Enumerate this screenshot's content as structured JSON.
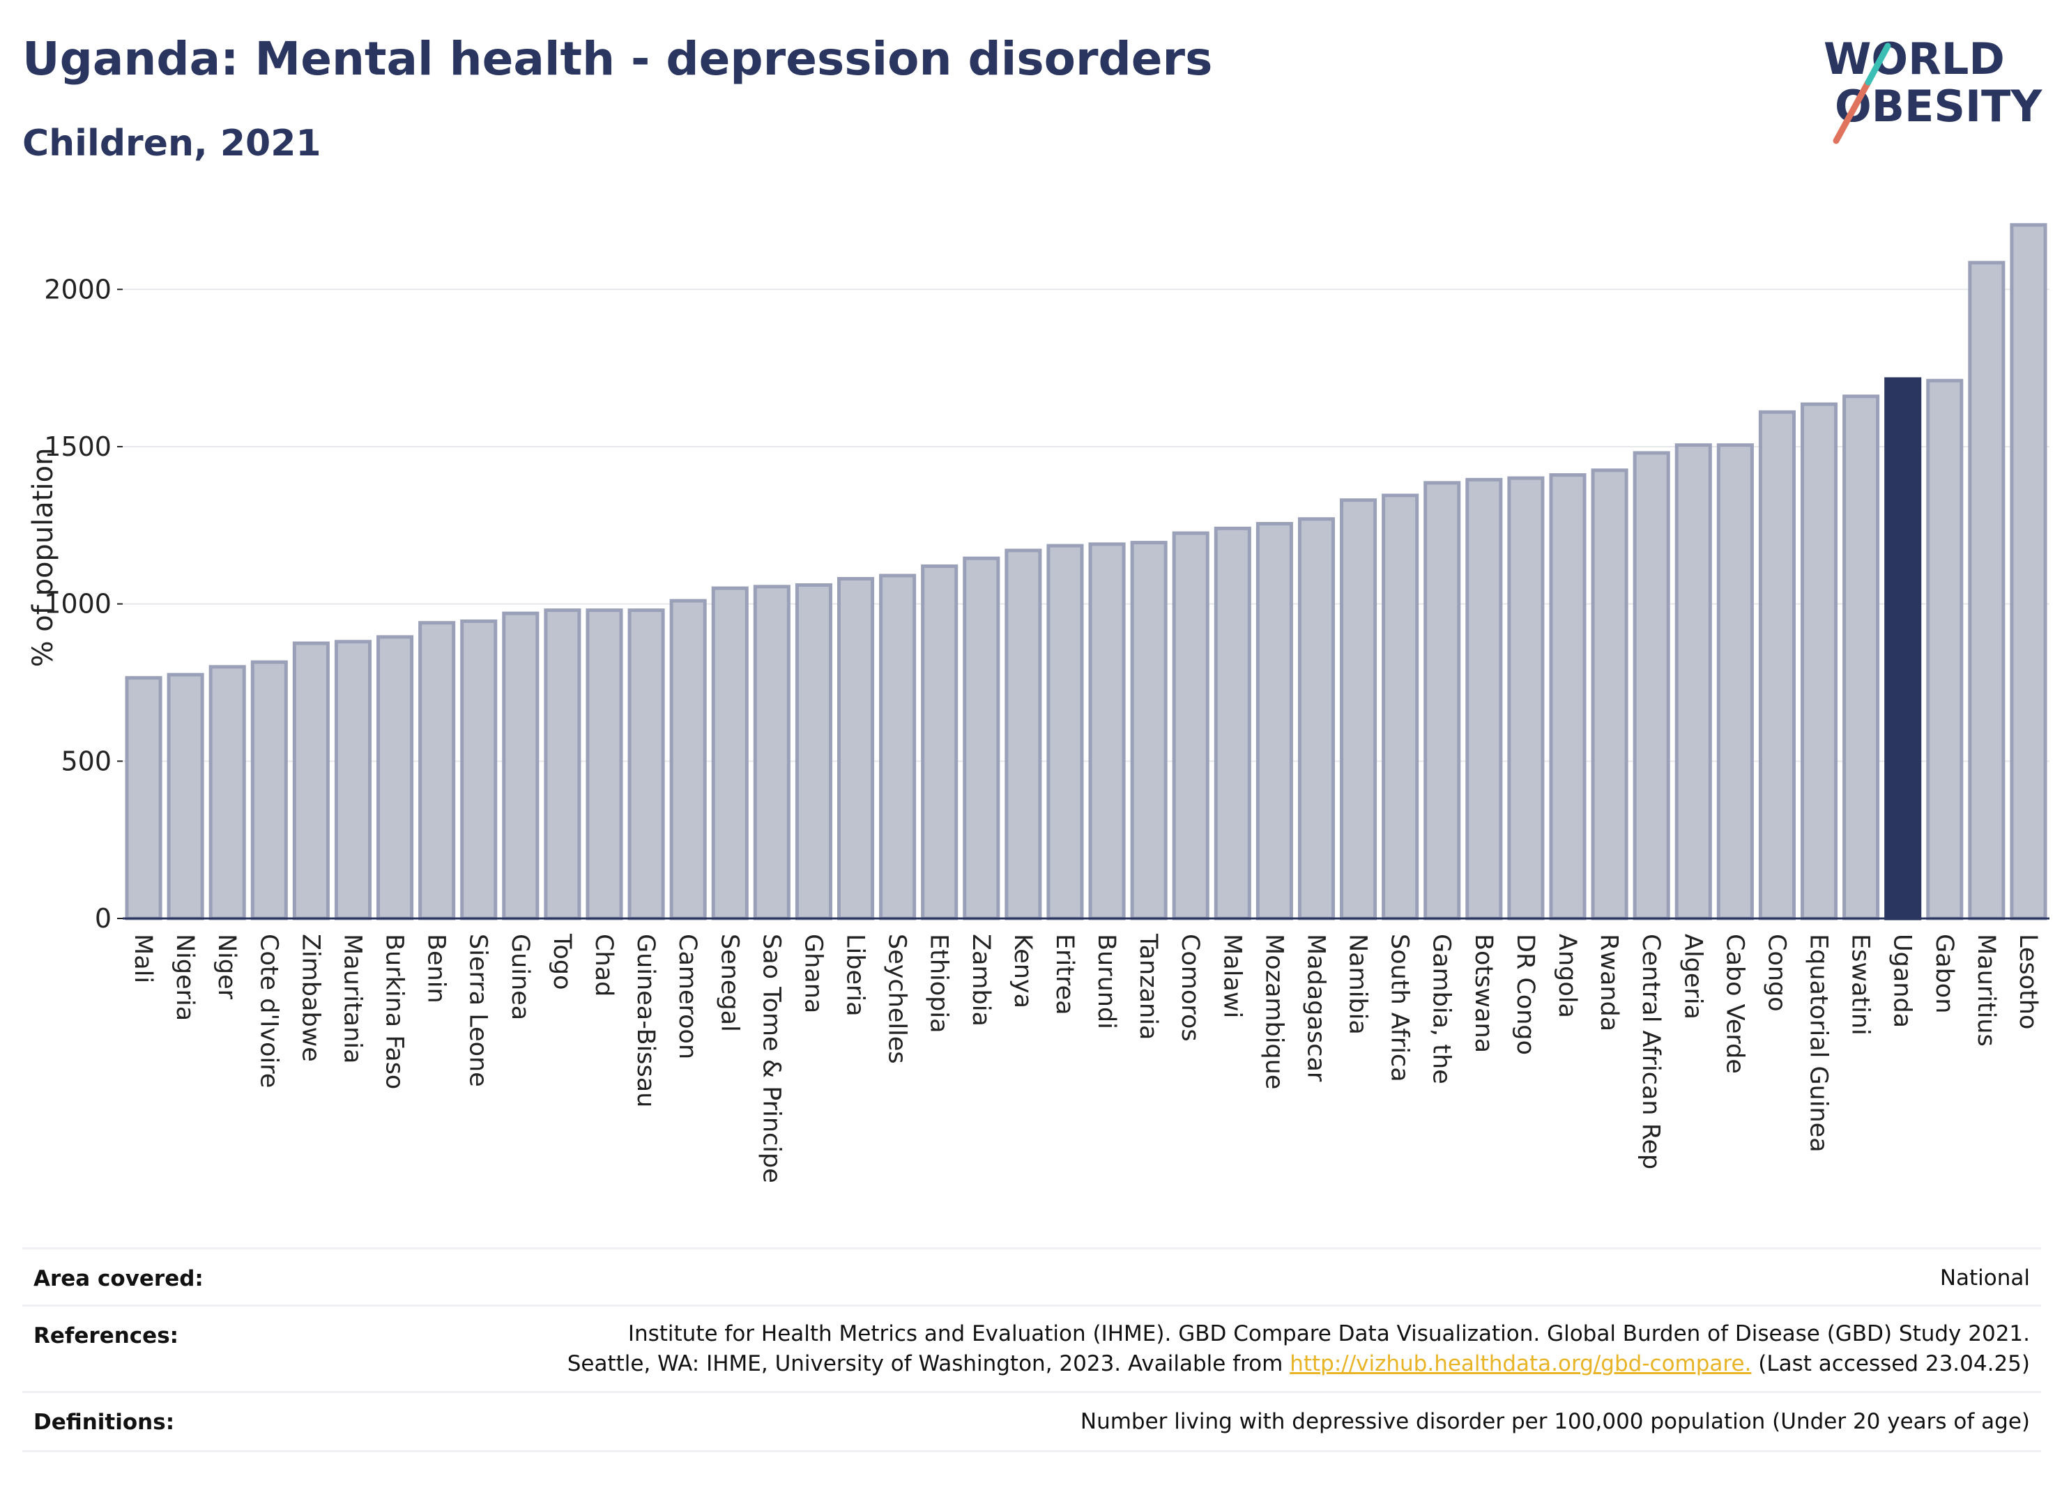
{
  "header": {
    "title": "Uganda: Mental health - depression disorders",
    "subtitle": "Children, 2021"
  },
  "logo": {
    "text_top": "WORLD",
    "text_bottom": "OBESITY"
  },
  "chart_data": {
    "type": "bar",
    "ylabel": "% of population",
    "ylim": [
      0,
      2200
    ],
    "yticks": [
      0,
      500,
      1000,
      1500,
      2000
    ],
    "grid": true,
    "highlight": "Uganda",
    "colors": {
      "bar": "#bfc3d0",
      "bar_edge": "#9aa0b8",
      "highlight": "#2a3560"
    },
    "categories": [
      "Mali",
      "Nigeria",
      "Niger",
      "Cote d'Ivoire",
      "Zimbabwe",
      "Mauritania",
      "Burkina Faso",
      "Benin",
      "Sierra Leone",
      "Guinea",
      "Togo",
      "Chad",
      "Guinea-Bissau",
      "Cameroon",
      "Senegal",
      "Sao Tome & Principe",
      "Ghana",
      "Liberia",
      "Seychelles",
      "Ethiopia",
      "Zambia",
      "Kenya",
      "Eritrea",
      "Burundi",
      "Tanzania",
      "Comoros",
      "Malawi",
      "Mozambique",
      "Madagascar",
      "Namibia",
      "South Africa",
      "Gambia, the",
      "Botswana",
      "DR Congo",
      "Angola",
      "Rwanda",
      "Central African Rep",
      "Algeria",
      "Cabo Verde",
      "Congo",
      "Equatorial Guinea",
      "Eswatini",
      "Uganda",
      "Gabon",
      "Mauritius",
      "Lesotho"
    ],
    "values": [
      765,
      775,
      800,
      815,
      875,
      880,
      895,
      940,
      945,
      970,
      980,
      980,
      980,
      1010,
      1050,
      1055,
      1060,
      1080,
      1090,
      1120,
      1145,
      1170,
      1185,
      1190,
      1195,
      1225,
      1240,
      1255,
      1270,
      1330,
      1345,
      1385,
      1395,
      1400,
      1410,
      1425,
      1480,
      1505,
      1505,
      1610,
      1635,
      1660,
      1715,
      1710,
      2085,
      2205
    ]
  },
  "info": {
    "area_label": "Area covered:",
    "area_value": "National",
    "references_label": "References:",
    "references_line1": "Institute for Health Metrics and Evaluation (IHME). GBD Compare Data Visualization. Global Burden of Disease (GBD) Study 2021.",
    "references_line2_pre": "Seattle, WA: IHME, University of Washington, 2023. Available from ",
    "references_link": "http://vizhub.healthdata.org/gbd-compare.",
    "references_line2_post": " (Last accessed 23.04.25)",
    "definitions_label": "Definitions:",
    "definitions_value": "Number living with depressive disorder per 100,000 population (Under 20 years of age)"
  }
}
